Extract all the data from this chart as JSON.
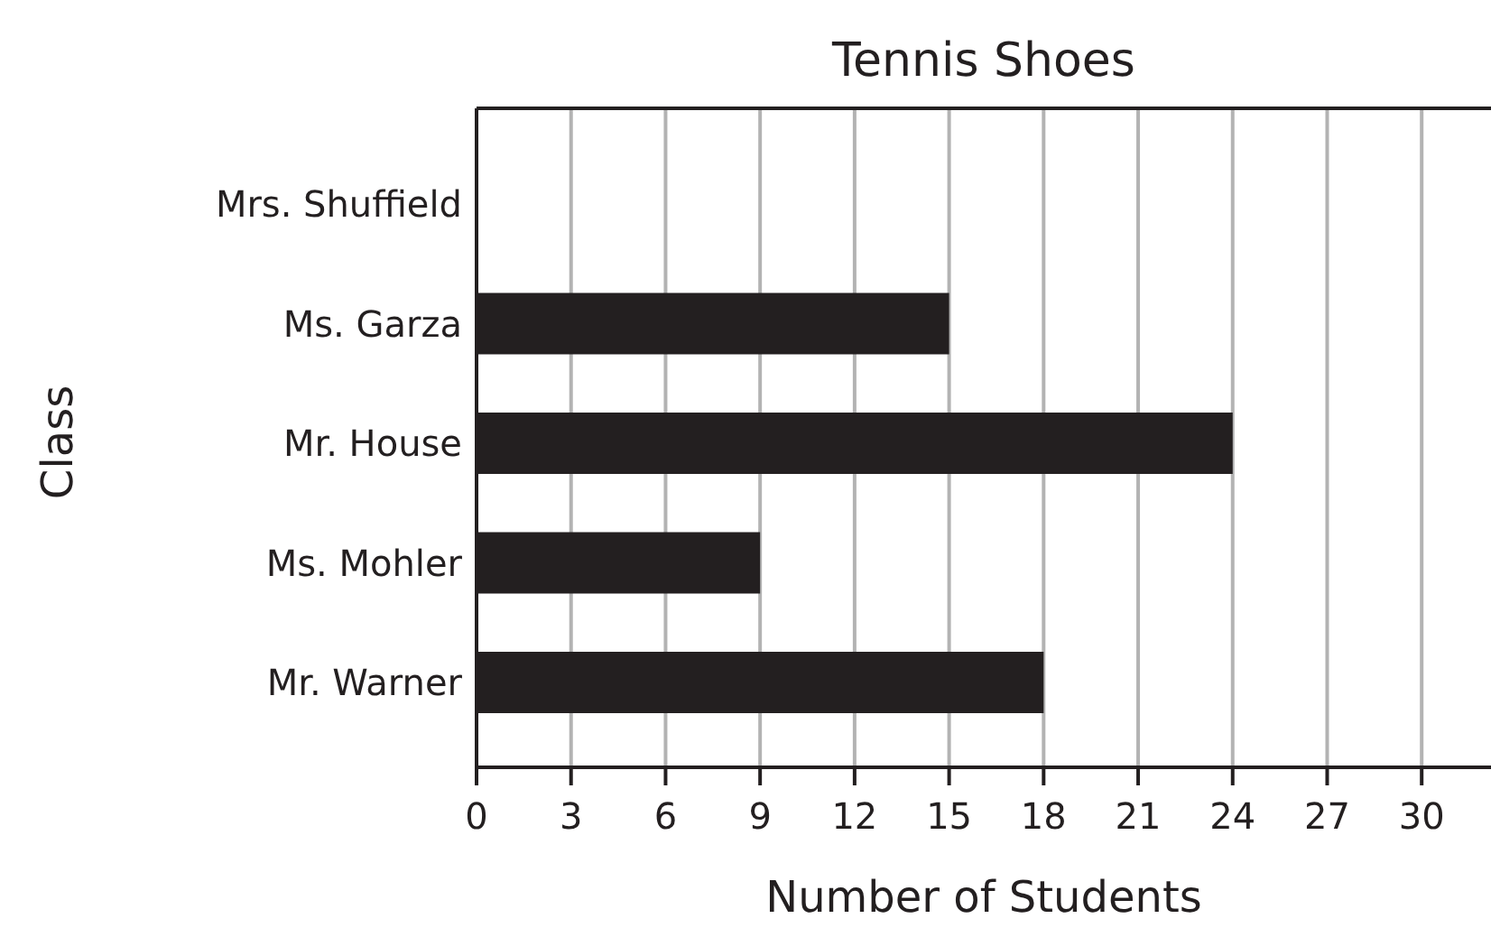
{
  "chart_data": {
    "type": "bar",
    "orientation": "horizontal",
    "title": "Tennis Shoes",
    "xlabel": "Number of Students",
    "ylabel": "Class",
    "categories": [
      "Mrs. Shuffield",
      "Ms. Garza",
      "Mr. House",
      "Ms. Mohler",
      "Mr. Warner"
    ],
    "values": [
      0,
      15,
      24,
      9,
      18
    ],
    "color": "#231f20",
    "xlim": [
      0,
      32.2
    ],
    "xticks": [
      0,
      3,
      6,
      9,
      12,
      15,
      18,
      21,
      24,
      27,
      30
    ],
    "grid": "x"
  }
}
